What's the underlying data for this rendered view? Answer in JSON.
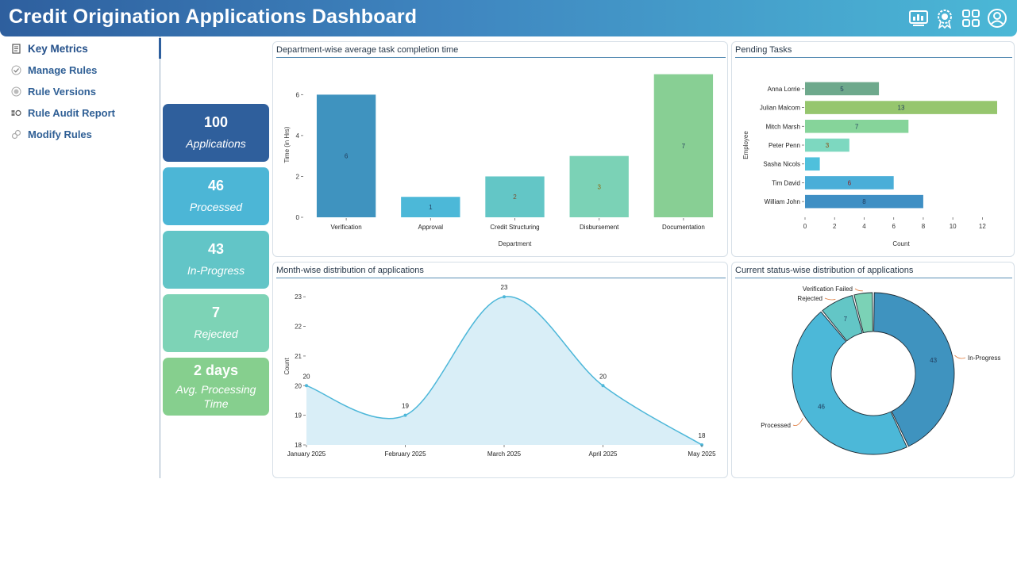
{
  "header": {
    "title": "Credit Origination Applications Dashboard",
    "icons": [
      "monitor-chart-icon",
      "award-badge-icon",
      "grid-apps-icon",
      "user-profile-icon"
    ]
  },
  "sidebar": {
    "items": [
      {
        "label": "Key Metrics",
        "icon": "document-icon",
        "active": true
      },
      {
        "label": "Manage Rules",
        "icon": "check-circle-icon",
        "active": false
      },
      {
        "label": "Rule Versions",
        "icon": "versions-icon",
        "active": false
      },
      {
        "label": "Rule Audit Report",
        "icon": "audit-icon",
        "active": false
      },
      {
        "label": "Modify Rules",
        "icon": "link-edit-icon",
        "active": false
      }
    ]
  },
  "kpis": [
    {
      "value": "100",
      "label": "Applications",
      "color": "#2f5f9c"
    },
    {
      "value": "46",
      "label": "Processed",
      "color": "#4cb6d6"
    },
    {
      "value": "43",
      "label": "In-Progress",
      "color": "#62c5c7"
    },
    {
      "value": "7",
      "label": "Rejected",
      "color": "#7dd3b6"
    },
    {
      "value": "2 days",
      "label": "Avg. Processing Time",
      "color": "#86cf8e"
    }
  ],
  "panels": {
    "dept": "Department-wise average task completion time",
    "pending": "Pending Tasks",
    "month": "Month-wise distribution of applications",
    "status": "Current status-wise distribution of applications"
  },
  "chart_data": [
    {
      "type": "bar",
      "title": "Department-wise average task completion time",
      "xlabel": "Department",
      "ylabel": "Time (in Hrs)",
      "categories": [
        "Verification",
        "Approval",
        "Credit Structuring",
        "Disbursement",
        "Documentation"
      ],
      "values": [
        6,
        1,
        2,
        3,
        7
      ],
      "colors": [
        "#3f93bf",
        "#4cb8d8",
        "#63c6c6",
        "#7bd2b6",
        "#88cf94"
      ],
      "label_colors": [
        "#1f3a5a",
        "#1f3a5a",
        "#7a4a2a",
        "#8a6a10",
        "#1f3a5a"
      ],
      "yticks": [
        0,
        2,
        4,
        6
      ],
      "ylim": [
        0,
        7.1
      ]
    },
    {
      "type": "bar",
      "orientation": "horizontal",
      "title": "Pending Tasks",
      "xlabel": "Count",
      "ylabel": "Employee",
      "categories": [
        "Anna Lorrie",
        "Julian Malcom",
        "Mitch Marsh",
        "Peter Penn",
        "Sasha Nicols",
        "Tim David",
        "William John"
      ],
      "values": [
        5,
        13,
        7,
        3,
        1,
        6,
        8
      ],
      "value_labels": [
        "5",
        "13",
        "7",
        "3",
        "",
        "6",
        "8"
      ],
      "colors": [
        "#6ea98c",
        "#96c66e",
        "#86d49a",
        "#7dd8c0",
        "#4fc0dc",
        "#4aaed8",
        "#3f8fc4"
      ],
      "label_colors": [
        "#1f3a5a",
        "#1f3a5a",
        "#1f3a5a",
        "#8a4a10",
        "#1f3a5a",
        "#8a2020",
        "#1f3a5a"
      ],
      "xticks": [
        0,
        2,
        4,
        6,
        8,
        10,
        12
      ],
      "xlim": [
        0,
        13
      ]
    },
    {
      "type": "area",
      "title": "Month-wise distribution of applications",
      "xlabel": "",
      "ylabel": "Count",
      "x": [
        "January 2025",
        "February 2025",
        "March 2025",
        "April 2025",
        "May 2025"
      ],
      "values": [
        20,
        19,
        23,
        20,
        18
      ],
      "yticks": [
        18,
        19,
        20,
        21,
        22,
        23
      ],
      "ylim": [
        18,
        23.3
      ]
    },
    {
      "type": "pie",
      "donut": true,
      "title": "Current status-wise distribution of applications",
      "labels": [
        "In-Progress",
        "Processed",
        "Rejected",
        "Verification Failed"
      ],
      "values": [
        43,
        46,
        7,
        4
      ],
      "value_labels": [
        "43",
        "46",
        "7",
        ""
      ],
      "colors": [
        "#3f93bf",
        "#4cb8d8",
        "#63c6c6",
        "#7bd2b6"
      ]
    }
  ]
}
